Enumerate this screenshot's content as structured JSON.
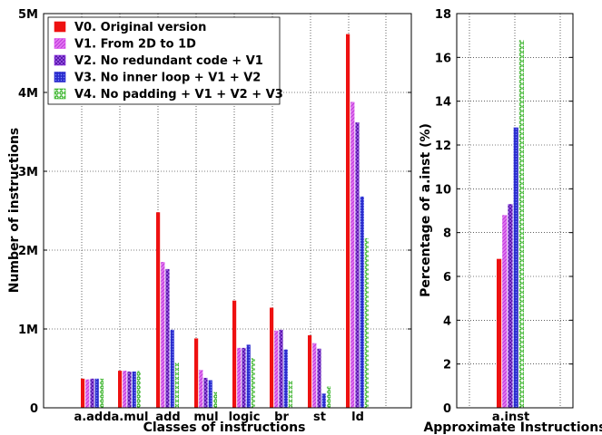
{
  "chart_data": [
    {
      "type": "bar",
      "xlabel": "Classes of instructions",
      "ylabel": "Number of instructions",
      "ylim": [
        0,
        5000000
      ],
      "yticks": [
        0,
        1000000,
        2000000,
        3000000,
        4000000,
        5000000
      ],
      "ytick_labels": [
        "0",
        "1M",
        "2M",
        "3M",
        "4M",
        "5M"
      ],
      "grid": true,
      "legend_position": "top-left",
      "categories": [
        "a.add",
        "a.mul",
        "add",
        "mul",
        "logic",
        "br",
        "st",
        "ld"
      ],
      "series": [
        {
          "name": "V0. Original version",
          "color": "#ee1111",
          "pattern": "solid",
          "values": [
            370000,
            470000,
            2480000,
            880000,
            1360000,
            1270000,
            920000,
            4740000
          ]
        },
        {
          "name": "V1. From 2D to 1D",
          "color": "#dd44ee",
          "pattern": "diagonal",
          "values": [
            360000,
            470000,
            1850000,
            480000,
            760000,
            980000,
            820000,
            3880000
          ]
        },
        {
          "name": "V2. No redundant code + V1",
          "color": "#8822dd",
          "pattern": "crosshatch",
          "values": [
            370000,
            460000,
            1760000,
            380000,
            760000,
            990000,
            750000,
            3620000
          ]
        },
        {
          "name": "V3. No inner loop + V1 + V2",
          "color": "#2222cc",
          "pattern": "dots",
          "values": [
            370000,
            460000,
            990000,
            350000,
            800000,
            740000,
            180000,
            2680000
          ]
        },
        {
          "name": "V4. No padding + V1 + V2 + V3",
          "color": "#33bb22",
          "pattern": "circles",
          "values": [
            370000,
            470000,
            580000,
            200000,
            630000,
            340000,
            270000,
            2150000
          ]
        }
      ]
    },
    {
      "type": "bar",
      "xlabel": "Approximate Instructions",
      "ylabel": "Percentage of a.inst (%)",
      "ylim": [
        0,
        18
      ],
      "yticks": [
        0,
        2,
        4,
        6,
        8,
        10,
        12,
        14,
        16,
        18
      ],
      "ytick_labels": [
        "0",
        "2",
        "4",
        "6",
        "8",
        "10",
        "12",
        "14",
        "16",
        "18"
      ],
      "grid": true,
      "categories": [
        "a.inst"
      ],
      "series": [
        {
          "name": "V0. Original version",
          "values": [
            6.8
          ]
        },
        {
          "name": "V1. From 2D to 1D",
          "values": [
            8.8
          ]
        },
        {
          "name": "V2. No redundant code + V1",
          "values": [
            9.3
          ]
        },
        {
          "name": "V3. No inner loop + V1 + V2",
          "values": [
            12.8
          ]
        },
        {
          "name": "V4. No padding + V1 + V2 + V3",
          "values": [
            16.8
          ]
        }
      ]
    }
  ]
}
